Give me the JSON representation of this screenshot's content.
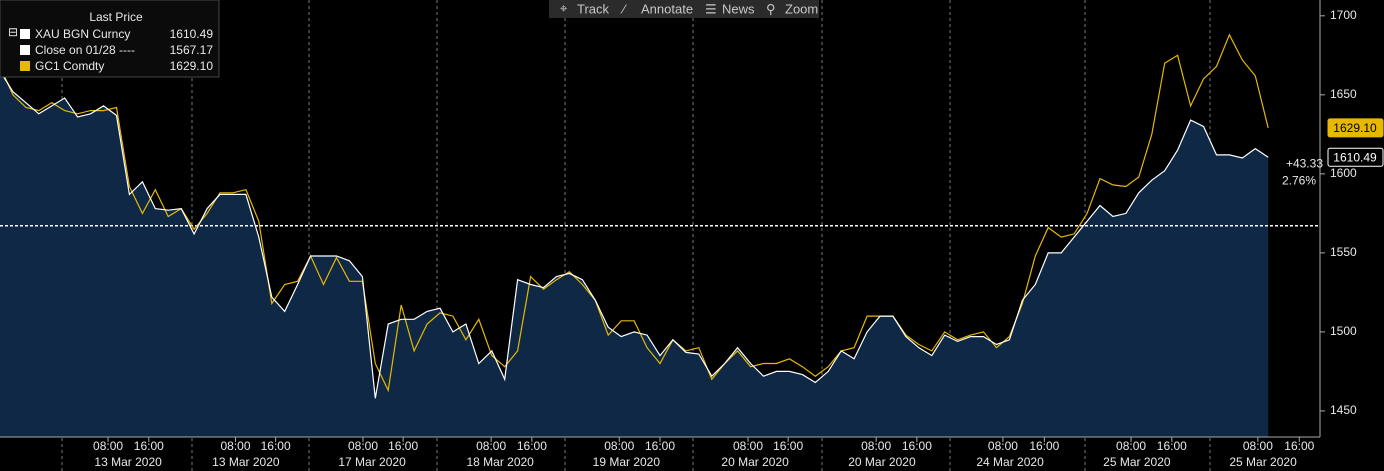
{
  "chart_data": {
    "type": "line",
    "toolbar": [
      "Track",
      "Annotate",
      "News",
      "Zoom"
    ],
    "legend_title": "Last Price",
    "x": [
      0,
      1,
      2,
      3,
      4,
      5,
      6,
      7,
      8,
      9,
      10,
      11,
      12,
      13,
      14,
      15,
      16,
      17,
      18,
      19,
      20,
      21,
      22,
      23,
      24,
      25,
      26,
      27,
      28,
      29,
      30,
      31,
      32,
      33,
      34,
      35,
      36,
      37,
      38,
      39,
      40,
      41,
      42,
      43,
      44,
      45,
      46,
      47,
      48,
      49,
      50,
      51,
      52,
      53,
      54,
      55,
      56,
      57,
      58,
      59,
      60,
      61,
      62,
      63,
      64,
      65,
      66,
      67,
      68,
      69,
      70,
      71,
      72,
      73,
      74,
      75,
      76,
      77,
      78,
      79,
      80,
      81,
      82,
      83,
      84,
      85,
      86,
      87,
      88,
      89,
      90,
      91,
      92,
      93,
      94,
      95,
      96,
      97,
      98
    ],
    "series": [
      {
        "name": "XAU BGN Curncy",
        "last": "1610.49",
        "color": "#ffffff",
        "area": "#0f2846",
        "values": [
          1665,
          1652,
          1645,
          1638,
          1643,
          1648,
          1636,
          1638,
          1643,
          1637,
          1587,
          1595,
          1578,
          1577,
          1578,
          1562,
          1578,
          1587,
          1587,
          1587,
          1560,
          1522,
          1513,
          1530,
          1548,
          1548,
          1548,
          1545,
          1535,
          1458,
          1505,
          1508,
          1508,
          1513,
          1515,
          1500,
          1505,
          1480,
          1488,
          1470,
          1533,
          1530,
          1528,
          1535,
          1537,
          1533,
          1520,
          1503,
          1497,
          1500,
          1498,
          1485,
          1495,
          1487,
          1486,
          1472,
          1480,
          1490,
          1480,
          1472,
          1475,
          1475,
          1473,
          1468,
          1475,
          1488,
          1483,
          1500,
          1510,
          1510,
          1497,
          1490,
          1485,
          1498,
          1494,
          1497,
          1497,
          1492,
          1495,
          1520,
          1530,
          1550,
          1550,
          1560,
          1570,
          1580,
          1573,
          1575,
          1588,
          1596,
          1602,
          1615,
          1634,
          1630,
          1612,
          1612,
          1610,
          1616,
          1610.49
        ]
      },
      {
        "name": "GC1 Comdty",
        "last": "1629.10",
        "color": "#e6b800",
        "values": [
          1668,
          1650,
          1642,
          1640,
          1645,
          1640,
          1638,
          1640,
          1640,
          1642,
          1592,
          1575,
          1590,
          1573,
          1578,
          1565,
          1575,
          1588,
          1588,
          1590,
          1570,
          1518,
          1530,
          1532,
          1548,
          1530,
          1547,
          1532,
          1532,
          1480,
          1463,
          1517,
          1488,
          1505,
          1512,
          1510,
          1495,
          1508,
          1485,
          1478,
          1488,
          1535,
          1527,
          1533,
          1538,
          1530,
          1520,
          1498,
          1507,
          1507,
          1490,
          1480,
          1495,
          1488,
          1490,
          1470,
          1480,
          1488,
          1478,
          1480,
          1480,
          1483,
          1478,
          1472,
          1478,
          1488,
          1490,
          1510,
          1510,
          1510,
          1498,
          1492,
          1488,
          1500,
          1495,
          1498,
          1500,
          1490,
          1497,
          1518,
          1548,
          1566,
          1560,
          1562,
          1575,
          1597,
          1593,
          1592,
          1598,
          1625,
          1670,
          1675,
          1643,
          1660,
          1668,
          1688,
          1672,
          1662,
          1629.1
        ]
      }
    ],
    "reference_line": {
      "name": "Close on 01/28 ----",
      "value": 1567.17,
      "label": "1567.17",
      "color": "#ffffff"
    },
    "price_tags": [
      {
        "value": 1629.1,
        "label": "1629.10",
        "color": "#e6b800"
      },
      {
        "value": 1610.49,
        "label": "1610.49",
        "color": "#ffffff"
      }
    ],
    "change_labels": [
      "+43.33",
      "2.76%"
    ],
    "xlim": [
      0,
      102
    ],
    "ylim": [
      1433.5,
      1710
    ],
    "yticks": [
      1450,
      1500,
      1550,
      1600,
      1650,
      1700
    ],
    "xticks": [
      {
        "value": 8.35,
        "label": "08:00"
      },
      {
        "value": 11.5,
        "label": "16:00"
      },
      {
        "value": 18.2,
        "label": "08:00"
      },
      {
        "value": 21.3,
        "label": "16:00"
      },
      {
        "value": 28.05,
        "label": "08:00"
      },
      {
        "value": 31.15,
        "label": "16:00"
      },
      {
        "value": 37.95,
        "label": "08:00"
      },
      {
        "value": 41.1,
        "label": "16:00"
      },
      {
        "value": 47.85,
        "label": "08:00"
      },
      {
        "value": 51.0,
        "label": "16:00"
      },
      {
        "value": 57.8,
        "label": "08:00"
      },
      {
        "value": 60.9,
        "label": "16:00"
      },
      {
        "value": 67.7,
        "label": "08:00"
      },
      {
        "value": 70.85,
        "label": "16:00"
      },
      {
        "value": 77.5,
        "label": "08:00"
      },
      {
        "value": 80.7,
        "label": "16:00"
      },
      {
        "value": 87.4,
        "label": "08:00"
      },
      {
        "value": 90.55,
        "label": "16:00"
      },
      {
        "value": 97.2,
        "label": "08:00"
      },
      {
        "value": 100.4,
        "label": "16:00"
      }
    ],
    "date_labels": [
      {
        "value": 9.9,
        "label": "13 Mar 2020"
      },
      {
        "value": 19.0,
        "label": "13 Mar 2020"
      },
      {
        "value": 28.75,
        "label": "17 Mar 2020"
      },
      {
        "value": 38.65,
        "label": "18 Mar 2020"
      },
      {
        "value": 48.4,
        "label": "19 Mar 2020"
      },
      {
        "value": 58.35,
        "label": "20 Mar 2020"
      },
      {
        "value": 68.15,
        "label": "20 Mar 2020"
      },
      {
        "value": 78.05,
        "label": "24 Mar 2020"
      },
      {
        "value": 87.85,
        "label": "25 Mar 2020"
      },
      {
        "value": 97.6,
        "label": "25 Mar 2020"
      }
    ]
  }
}
